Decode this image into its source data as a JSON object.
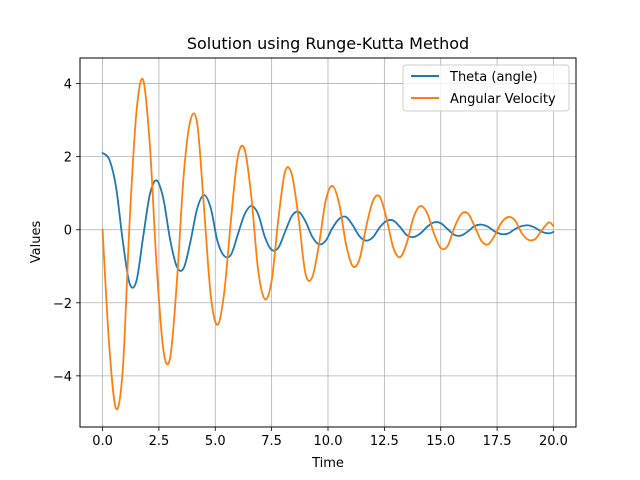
{
  "chart_data": {
    "type": "line",
    "title": "Solution using Runge-Kutta Method",
    "xlabel": "Time",
    "ylabel": "Values",
    "xlim": [
      -1.0,
      21.0
    ],
    "ylim": [
      -5.4,
      4.7
    ],
    "xticks": [
      0.0,
      2.5,
      5.0,
      7.5,
      10.0,
      12.5,
      15.0,
      17.5,
      20.0
    ],
    "xtick_labels": [
      "0.0",
      "2.5",
      "5.0",
      "7.5",
      "10.0",
      "12.5",
      "15.0",
      "17.5",
      "20.0"
    ],
    "yticks": [
      -4,
      -2,
      0,
      2,
      4
    ],
    "ytick_labels": [
      "−4",
      "−2",
      "0",
      "2",
      "4"
    ],
    "grid": true,
    "legend_position": "top-right",
    "series": [
      {
        "name": "Theta (angle)",
        "color": "#1f77b4",
        "x": [
          0.0,
          0.3,
          0.6,
          0.9,
          1.2,
          1.5,
          1.8,
          2.1,
          2.4,
          2.7,
          3.0,
          3.3,
          3.6,
          3.9,
          4.2,
          4.5,
          4.8,
          5.1,
          5.4,
          5.7,
          6.0,
          6.3,
          6.6,
          6.9,
          7.2,
          7.5,
          7.8,
          8.1,
          8.4,
          8.7,
          9.0,
          9.3,
          9.6,
          9.9,
          10.2,
          10.5,
          10.8,
          11.1,
          11.4,
          11.7,
          12.0,
          12.3,
          12.6,
          12.9,
          13.2,
          13.5,
          13.8,
          14.1,
          14.4,
          14.7,
          15.0,
          15.3,
          15.6,
          15.9,
          16.2,
          16.5,
          16.8,
          17.1,
          17.4,
          17.7,
          18.0,
          18.3,
          18.6,
          18.9,
          19.2,
          19.5,
          19.8,
          20.0
        ],
        "values": [
          2.1,
          1.92,
          1.16,
          -0.32,
          -1.47,
          -1.41,
          -0.2,
          0.97,
          1.35,
          0.84,
          -0.28,
          -1.02,
          -1.05,
          -0.32,
          0.58,
          0.95,
          0.59,
          -0.32,
          -0.72,
          -0.68,
          -0.13,
          0.42,
          0.65,
          0.43,
          -0.2,
          -0.55,
          -0.49,
          -0.05,
          0.38,
          0.49,
          0.23,
          -0.19,
          -0.4,
          -0.3,
          0.05,
          0.3,
          0.35,
          0.12,
          -0.18,
          -0.3,
          -0.2,
          0.07,
          0.24,
          0.25,
          0.07,
          -0.15,
          -0.2,
          -0.1,
          0.08,
          0.2,
          0.18,
          0.02,
          -0.14,
          -0.16,
          -0.05,
          0.1,
          0.14,
          0.08,
          -0.05,
          -0.12,
          -0.1,
          0.02,
          0.1,
          0.12,
          0.05,
          -0.06,
          -0.1,
          -0.06
        ]
      },
      {
        "name": "Angular Velocity",
        "color": "#ff7f0e",
        "x": [
          0.0,
          0.3,
          0.6,
          0.9,
          1.2,
          1.5,
          1.8,
          2.1,
          2.4,
          2.7,
          3.0,
          3.3,
          3.6,
          3.9,
          4.2,
          4.5,
          4.8,
          5.1,
          5.4,
          5.7,
          6.0,
          6.3,
          6.6,
          6.9,
          7.2,
          7.5,
          7.8,
          8.1,
          8.4,
          8.7,
          9.0,
          9.3,
          9.6,
          9.9,
          10.2,
          10.5,
          10.8,
          11.1,
          11.4,
          11.7,
          12.0,
          12.3,
          12.6,
          12.9,
          13.2,
          13.5,
          13.8,
          14.1,
          14.4,
          14.7,
          15.0,
          15.3,
          15.6,
          15.9,
          16.2,
          16.5,
          16.8,
          17.1,
          17.4,
          17.7,
          18.0,
          18.3,
          18.6,
          18.9,
          19.2,
          19.5,
          19.8,
          20.0
        ],
        "values": [
          0.0,
          -3.2,
          -4.9,
          -3.8,
          0.2,
          3.2,
          4.1,
          2.3,
          -1.0,
          -3.3,
          -3.5,
          -1.4,
          1.5,
          3.0,
          2.9,
          0.6,
          -1.8,
          -2.6,
          -1.7,
          0.3,
          2.0,
          2.2,
          0.9,
          -1.1,
          -1.9,
          -1.4,
          0.3,
          1.6,
          1.5,
          0.3,
          -1.2,
          -1.3,
          -0.4,
          0.8,
          1.2,
          0.7,
          -0.4,
          -1.0,
          -0.8,
          0.1,
          0.8,
          0.9,
          0.3,
          -0.5,
          -0.75,
          -0.35,
          0.35,
          0.65,
          0.45,
          -0.1,
          -0.5,
          -0.45,
          0.05,
          0.42,
          0.45,
          0.1,
          -0.3,
          -0.4,
          -0.15,
          0.2,
          0.35,
          0.25,
          -0.1,
          -0.28,
          -0.25,
          0.0,
          0.2,
          0.1
        ]
      }
    ]
  }
}
